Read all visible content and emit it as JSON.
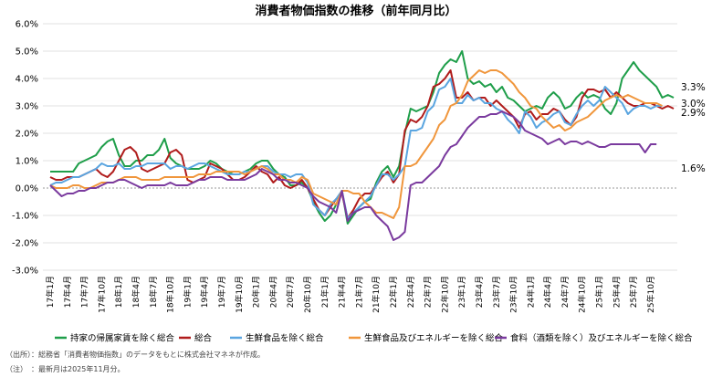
{
  "chart_data": {
    "type": "line",
    "title": "消費者物価指数の推移（前年同月比）",
    "y_tick_labels": [
      "6.0%",
      "5.0%",
      "4.0%",
      "3.0%",
      "2.0%",
      "1.0%",
      "0.0%",
      "-1.0%",
      "-2.0%",
      "-3.0%"
    ],
    "ylim": [
      -3,
      6
    ],
    "x_tick_labels": [
      "17年1月",
      "17年4月",
      "17年7月",
      "17年10月",
      "18年1月",
      "18年4月",
      "18年7月",
      "18年10月",
      "19年1月",
      "19年4月",
      "19年7月",
      "19年10月",
      "20年1月",
      "20年4月",
      "20年7月",
      "20年10月",
      "21年1月",
      "21年4月",
      "21年7月",
      "21年10月",
      "22年1月",
      "22年4月",
      "22年7月",
      "22年10月",
      "23年1月",
      "23年4月",
      "23年7月",
      "23年10月",
      "24年1月",
      "24年4月",
      "24年7月",
      "24年10月",
      "25年1月",
      "25年4月",
      "25年7月",
      "25年10月"
    ],
    "grid": "horizontal",
    "legend_position": "bottom",
    "series": [
      {
        "name": "持家の帰属家賃を除く総合",
        "color": "#1f9e4a",
        "values": [
          0.6,
          0.6,
          0.6,
          0.6,
          0.6,
          0.9,
          1.0,
          1.1,
          1.2,
          1.5,
          1.7,
          1.8,
          1.2,
          0.8,
          0.8,
          1.0,
          1.0,
          1.2,
          1.2,
          1.4,
          1.8,
          1.1,
          0.9,
          0.8,
          0.7,
          0.7,
          0.7,
          0.8,
          1.0,
          0.9,
          0.7,
          0.6,
          0.5,
          0.5,
          0.6,
          0.7,
          0.9,
          1.0,
          1.0,
          0.7,
          0.5,
          0.4,
          0.1,
          0.1,
          0.2,
          0.0,
          -0.5,
          -0.9,
          -1.2,
          -1.0,
          -0.6,
          -0.1,
          -1.3,
          -1.0,
          -0.7,
          -0.5,
          -0.4,
          0.2,
          0.6,
          0.8,
          0.4,
          0.8,
          2.0,
          2.9,
          2.8,
          2.9,
          3.0,
          3.5,
          4.2,
          4.5,
          4.7,
          4.6,
          5.0,
          4.0,
          3.8,
          3.9,
          3.7,
          3.8,
          3.5,
          3.7,
          3.3,
          3.2,
          3.0,
          2.8,
          2.9,
          3.0,
          2.9,
          3.3,
          3.5,
          3.3,
          2.9,
          3.0,
          3.3,
          3.5,
          3.3,
          3.4,
          3.3,
          2.9,
          2.7,
          3.1,
          4.0,
          4.3,
          4.6,
          4.3,
          4.1,
          3.9,
          3.7,
          3.3,
          3.4,
          3.3
        ]
      },
      {
        "name": "総合",
        "color": "#b01c1c",
        "values": [
          0.4,
          0.3,
          0.3,
          0.4,
          0.4,
          0.4,
          0.5,
          0.6,
          0.7,
          0.5,
          0.4,
          0.6,
          1.0,
          1.4,
          1.5,
          1.3,
          0.7,
          0.6,
          0.7,
          0.8,
          0.9,
          1.3,
          1.4,
          1.2,
          0.3,
          0.2,
          0.3,
          0.4,
          0.9,
          0.8,
          0.7,
          0.5,
          0.3,
          0.3,
          0.4,
          0.6,
          0.8,
          0.6,
          0.5,
          0.2,
          0.4,
          0.1,
          0.0,
          0.1,
          0.3,
          0.0,
          -0.4,
          -0.8,
          -1.0,
          -0.7,
          -0.4,
          -0.2,
          -1.1,
          -0.8,
          -0.4,
          -0.2,
          -0.2,
          0.1,
          0.4,
          0.6,
          0.2,
          0.5,
          2.1,
          2.5,
          2.4,
          2.6,
          3.0,
          3.7,
          3.8,
          4.0,
          4.3,
          3.3,
          3.3,
          3.5,
          3.2,
          3.3,
          3.3,
          3.0,
          3.2,
          3.0,
          2.8,
          2.6,
          2.2,
          2.7,
          2.8,
          2.5,
          2.7,
          2.7,
          2.9,
          2.8,
          2.5,
          2.3,
          2.6,
          3.3,
          3.6,
          3.6,
          3.5,
          3.6,
          3.3,
          3.5,
          3.3,
          3.1,
          3.0,
          3.0,
          3.1,
          3.1,
          3.0,
          2.9,
          3.0,
          2.9
        ]
      },
      {
        "name": "生鮮食品を除く総合",
        "color": "#5aa5e0",
        "values": [
          0.1,
          0.2,
          0.2,
          0.3,
          0.4,
          0.4,
          0.5,
          0.6,
          0.7,
          0.9,
          0.8,
          0.8,
          0.9,
          0.7,
          0.7,
          0.8,
          0.8,
          0.9,
          0.9,
          0.9,
          0.9,
          0.7,
          0.8,
          0.8,
          0.7,
          0.8,
          0.9,
          0.9,
          0.8,
          0.7,
          0.6,
          0.5,
          0.5,
          0.5,
          0.6,
          0.6,
          0.7,
          0.8,
          0.8,
          0.6,
          0.5,
          0.5,
          0.4,
          0.5,
          0.5,
          0.2,
          -0.6,
          -0.8,
          -1.0,
          -0.6,
          -0.4,
          -0.1,
          -1.1,
          -0.9,
          -0.7,
          -0.5,
          -0.3,
          0.1,
          0.5,
          0.5,
          0.3,
          0.5,
          0.8,
          2.1,
          2.1,
          2.2,
          2.8,
          3.0,
          3.6,
          3.7,
          4.0,
          3.1,
          3.1,
          3.4,
          3.2,
          3.3,
          3.1,
          3.1,
          2.9,
          2.8,
          2.5,
          2.3,
          2.0,
          2.8,
          2.6,
          2.2,
          2.4,
          2.5,
          2.7,
          2.8,
          2.4,
          2.3,
          2.7,
          3.0,
          3.2,
          3.0,
          3.2,
          3.7,
          3.5,
          3.3,
          3.1,
          2.7,
          2.9,
          3.0,
          3.0,
          2.9,
          3.0,
          3.0
        ]
      },
      {
        "name": "生鮮食品及びエネルギーを除く総合",
        "color": "#f0963c",
        "values": [
          0.1,
          0.0,
          0.0,
          0.0,
          0.1,
          0.1,
          0.0,
          0.0,
          0.1,
          0.2,
          0.2,
          0.2,
          0.3,
          0.4,
          0.4,
          0.4,
          0.3,
          0.3,
          0.3,
          0.3,
          0.4,
          0.4,
          0.4,
          0.4,
          0.4,
          0.4,
          0.5,
          0.5,
          0.5,
          0.6,
          0.6,
          0.6,
          0.6,
          0.6,
          0.5,
          0.6,
          0.7,
          0.8,
          0.7,
          0.5,
          0.5,
          0.3,
          0.3,
          0.2,
          0.4,
          0.3,
          -0.2,
          -0.3,
          -0.4,
          -0.5,
          -0.6,
          -0.1,
          -0.1,
          -0.2,
          -0.2,
          -0.5,
          -0.7,
          -0.9,
          -0.9,
          -1.0,
          -1.1,
          -0.7,
          0.8,
          0.8,
          0.9,
          1.2,
          1.5,
          1.8,
          2.3,
          2.5,
          3.0,
          3.1,
          3.4,
          3.9,
          4.1,
          4.3,
          4.2,
          4.3,
          4.3,
          4.2,
          4.0,
          3.8,
          3.5,
          3.3,
          3.0,
          2.9,
          2.6,
          2.4,
          2.2,
          2.3,
          2.1,
          2.2,
          2.4,
          2.5,
          2.6,
          2.8,
          3.0,
          3.2,
          3.3,
          3.4,
          3.3,
          3.4,
          3.3,
          3.2,
          3.1,
          3.1,
          3.1,
          3.0
        ]
      },
      {
        "name": "食料（酒類を除く）及びエネルギーを除く総合",
        "color": "#7a3a9e",
        "values": [
          0.1,
          -0.1,
          -0.3,
          -0.2,
          -0.2,
          -0.1,
          -0.1,
          0.0,
          0.0,
          0.1,
          0.2,
          0.2,
          0.3,
          0.3,
          0.2,
          0.1,
          0.0,
          0.1,
          0.1,
          0.1,
          0.1,
          0.2,
          0.1,
          0.1,
          0.1,
          0.2,
          0.3,
          0.3,
          0.4,
          0.4,
          0.4,
          0.3,
          0.3,
          0.3,
          0.3,
          0.4,
          0.5,
          0.7,
          0.6,
          0.5,
          0.3,
          0.3,
          0.2,
          0.2,
          0.1,
          0.0,
          -0.3,
          -0.5,
          -0.6,
          -0.7,
          -0.9,
          -0.1,
          -1.2,
          -0.9,
          -0.8,
          -0.7,
          -0.7,
          -1.0,
          -1.2,
          -1.4,
          -1.9,
          -1.8,
          -1.6,
          0.1,
          0.2,
          0.2,
          0.4,
          0.6,
          0.8,
          1.2,
          1.5,
          1.6,
          1.9,
          2.2,
          2.4,
          2.6,
          2.6,
          2.7,
          2.7,
          2.8,
          2.7,
          2.6,
          2.4,
          2.1,
          2.0,
          1.9,
          1.8,
          1.6,
          1.7,
          1.8,
          1.6,
          1.7,
          1.7,
          1.6,
          1.7,
          1.6,
          1.5,
          1.5,
          1.6,
          1.6,
          1.6,
          1.6,
          1.6,
          1.6,
          1.3,
          1.6,
          1.6
        ]
      }
    ],
    "end_labels": [
      "3.3%",
      "3.0%",
      "2.9%",
      "1.6%"
    ]
  },
  "notes": {
    "source": "（出所）：総務省「消費者物価指数」のデータをもとに株式会社マネネが作成。",
    "note": "（注）　：最新月は2025年11月分。"
  }
}
